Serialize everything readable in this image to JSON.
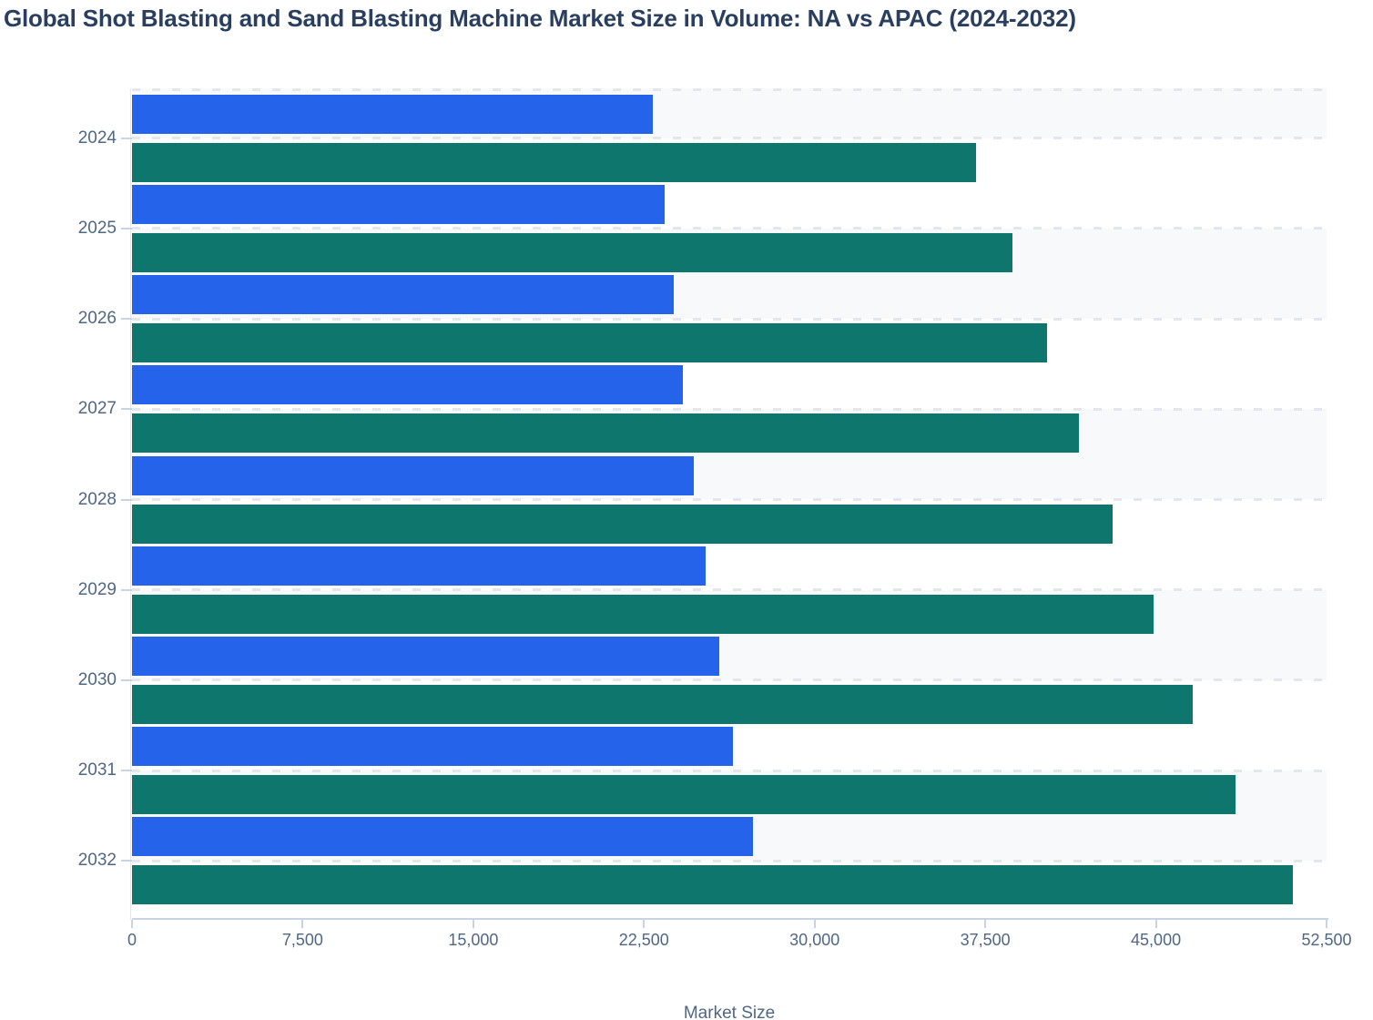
{
  "chart_data": {
    "type": "bar",
    "orientation": "horizontal",
    "title": "Global Shot Blasting and Sand Blasting Machine Market Size in Volume: NA vs APAC (2024-2032)",
    "xlabel": "Market Size",
    "ylabel": "",
    "categories": [
      "2024",
      "2025",
      "2026",
      "2027",
      "2028",
      "2029",
      "2030",
      "2031",
      "2032"
    ],
    "series": [
      {
        "name": "NA",
        "color": "#2563eb",
        "values": [
          22900,
          23400,
          23800,
          24200,
          24700,
          25200,
          25800,
          26400,
          27300
        ]
      },
      {
        "name": "APAC",
        "color": "#0f766e",
        "values": [
          37100,
          38700,
          40200,
          41600,
          43100,
          44900,
          46600,
          48500,
          51000
        ]
      }
    ],
    "bar_order_within_group": [
      "NA",
      "APAC"
    ],
    "xlim": [
      0,
      52500
    ],
    "x_ticks": [
      "0",
      "7,500",
      "15,000",
      "22,500",
      "30,000",
      "37,500",
      "45,000",
      "52,500"
    ],
    "grid": "dashed horizontal gridlines at each year boundary, alternating row shading",
    "legend_position": "none visible",
    "colors": {
      "na_bar": "#2563eb",
      "apac_bar": "#0f766e",
      "band_fill": "#f7f9fa",
      "gridline": "#e3e7ec",
      "axis_line": "#c8d4e3",
      "tick_label": "#506784",
      "title": "#2a3f5f"
    }
  }
}
